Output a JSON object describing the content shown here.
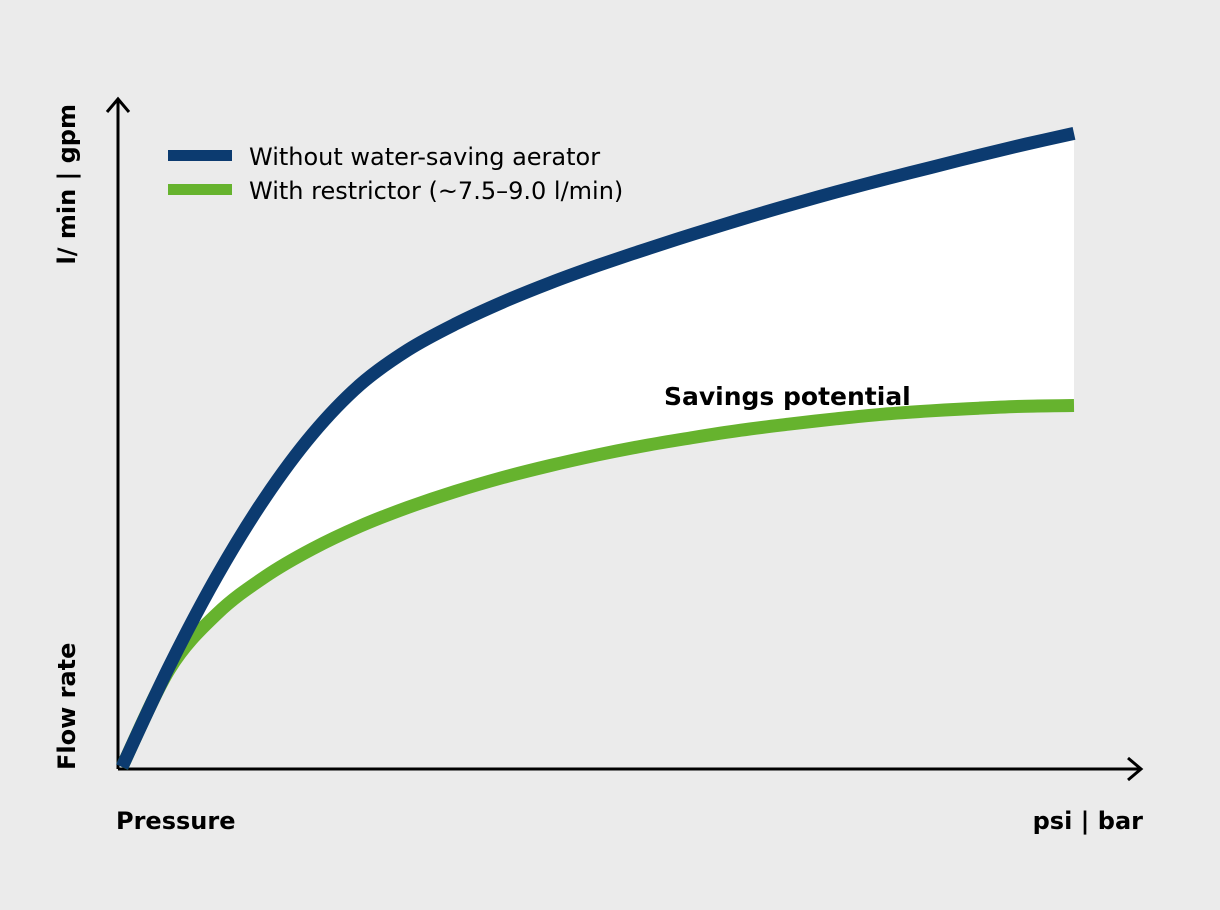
{
  "chart_data": {
    "type": "line",
    "title": "",
    "xlabel": "Pressure",
    "xunit": "psi | bar",
    "ylabel": "Flow rate",
    "yunit": "l/ min | gpm",
    "grid": false,
    "legend_position": "top-left",
    "annotation": "Savings potential",
    "x": [
      0,
      0.05,
      0.1,
      0.15,
      0.2,
      0.25,
      0.3,
      0.35,
      0.4,
      0.45,
      0.5,
      0.55,
      0.6,
      0.65,
      0.7,
      0.75,
      0.8,
      0.85,
      0.9,
      0.95,
      1.0
    ],
    "series": [
      {
        "name": "Without water-saving aerator",
        "color": "#0c3b70",
        "values": [
          0,
          0.152,
          0.287,
          0.403,
          0.499,
          0.573,
          0.625,
          0.664,
          0.697,
          0.726,
          0.752,
          0.776,
          0.799,
          0.821,
          0.842,
          0.862,
          0.881,
          0.899,
          0.917,
          0.934,
          0.95
        ]
      },
      {
        "name": "With restrictor (~7.5–9.0 l/min)",
        "color": "#66b32e",
        "values": [
          0,
          0.147,
          0.23,
          0.285,
          0.327,
          0.361,
          0.389,
          0.413,
          0.434,
          0.452,
          0.468,
          0.482,
          0.494,
          0.505,
          0.514,
          0.522,
          0.529,
          0.534,
          0.538,
          0.541,
          0.542
        ]
      }
    ],
    "fill_between_color": "#ffffff"
  }
}
